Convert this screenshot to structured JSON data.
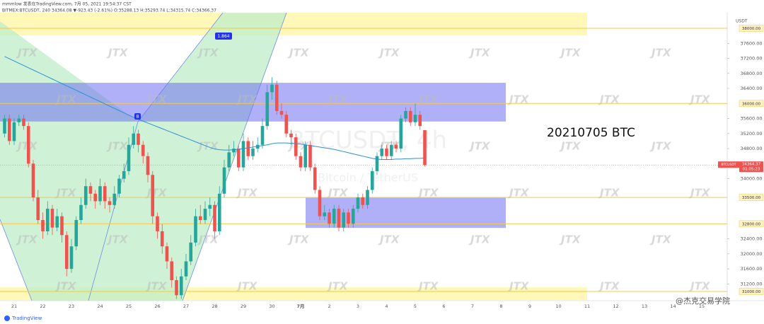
{
  "header": {
    "line1": "mmmlow 发表在TradingView.com, 7月 05, 2021 19:54:37 CST",
    "line2": "BITMEX:BTCUSDT, 240 34364.08 ▼-923.43 (-2.61%) O:35288.13 H:35293.74 L:34315.74 C:34366.37"
  },
  "chart_data": {
    "type": "candlestick",
    "up_color": "#26a69a",
    "down_color": "#ef5350",
    "categories": [
      null,
      null,
      "21",
      null,
      null,
      null,
      null,
      null,
      "22",
      null,
      null,
      null,
      null,
      null,
      "23",
      null,
      null,
      null,
      null,
      null,
      "24",
      null,
      null,
      null,
      null,
      null,
      "25",
      null,
      null,
      null,
      null,
      null,
      "26",
      null,
      null,
      null,
      null,
      null,
      "27",
      null,
      null,
      null,
      null,
      null,
      "28",
      null,
      null,
      null,
      null,
      null,
      "29",
      null,
      null,
      null,
      null,
      null,
      "30",
      null,
      null,
      null,
      null,
      null,
      "7月",
      null,
      null,
      null,
      null,
      null,
      "2",
      null,
      null,
      null,
      null,
      null,
      "3",
      null,
      null,
      null,
      null,
      null,
      "4",
      null,
      null,
      null,
      null,
      null,
      "5",
      null,
      null,
      null,
      null,
      null,
      "6",
      null,
      null,
      null,
      null,
      null,
      "7",
      null,
      null,
      null,
      null,
      null,
      "8",
      null,
      null,
      null,
      null,
      null,
      "9",
      null,
      null,
      null,
      null,
      null,
      "10",
      null,
      null,
      null,
      null,
      null,
      "11",
      null,
      null,
      null,
      null,
      null,
      "12",
      null,
      null,
      null,
      null,
      null,
      "13",
      null,
      null,
      null,
      null,
      null,
      "14",
      null,
      null,
      null,
      null,
      null,
      "15",
      null,
      null,
      null,
      null,
      null
    ],
    "ohlc": [
      [
        35200,
        35700,
        35100,
        35600
      ],
      [
        35600,
        35700,
        34900,
        35000
      ],
      [
        35000,
        35600,
        34900,
        35500
      ],
      [
        35500,
        35700,
        35400,
        35600
      ],
      [
        35600,
        35700,
        35300,
        35400
      ],
      [
        35400,
        35500,
        34300,
        34400
      ],
      [
        34400,
        34500,
        33400,
        33500
      ],
      [
        33500,
        33700,
        32800,
        32900
      ],
      [
        32900,
        33100,
        32400,
        32600
      ],
      [
        32600,
        33400,
        32500,
        33200
      ],
      [
        33200,
        33300,
        32500,
        32700
      ],
      [
        32700,
        33200,
        32600,
        33000
      ],
      [
        33000,
        33100,
        32300,
        32500
      ],
      [
        32500,
        32600,
        31400,
        31600
      ],
      [
        31600,
        32400,
        31500,
        32200
      ],
      [
        32200,
        33000,
        32100,
        32900
      ],
      [
        32900,
        33500,
        32800,
        33300
      ],
      [
        33300,
        34000,
        33200,
        33800
      ],
      [
        33800,
        33900,
        33400,
        33600
      ],
      [
        33600,
        33700,
        33200,
        33400
      ],
      [
        33400,
        34000,
        33300,
        33800
      ],
      [
        33800,
        33900,
        33200,
        33400
      ],
      [
        33400,
        33500,
        33100,
        33300
      ],
      [
        33300,
        33800,
        33200,
        33600
      ],
      [
        33600,
        34100,
        33500,
        34000
      ],
      [
        34000,
        34400,
        33900,
        34200
      ],
      [
        34200,
        35100,
        34100,
        34900
      ],
      [
        34900,
        35400,
        34800,
        35200
      ],
      [
        35200,
        35300,
        34700,
        34900
      ],
      [
        34900,
        35000,
        34400,
        34600
      ],
      [
        34600,
        34700,
        33900,
        34100
      ],
      [
        34100,
        34200,
        32800,
        33000
      ],
      [
        33000,
        33100,
        32400,
        32600
      ],
      [
        32600,
        32800,
        32000,
        32200
      ],
      [
        32200,
        32300,
        31600,
        31800
      ],
      [
        31800,
        31900,
        31100,
        31300
      ],
      [
        31300,
        31400,
        30800,
        30900
      ],
      [
        30900,
        31600,
        30800,
        31400
      ],
      [
        31400,
        32000,
        31300,
        31800
      ],
      [
        31800,
        32500,
        31700,
        32300
      ],
      [
        32300,
        33200,
        32200,
        33000
      ],
      [
        33000,
        33300,
        32800,
        32900
      ],
      [
        32900,
        33400,
        32800,
        33200
      ],
      [
        33200,
        33500,
        33000,
        33300
      ],
      [
        33300,
        33400,
        32400,
        32600
      ],
      [
        32600,
        33800,
        32500,
        33600
      ],
      [
        33600,
        34500,
        33500,
        34300
      ],
      [
        34300,
        34900,
        34200,
        34700
      ],
      [
        34700,
        35000,
        34600,
        34800
      ],
      [
        34800,
        34900,
        34200,
        34300
      ],
      [
        34300,
        35200,
        34200,
        35000
      ],
      [
        35000,
        35100,
        34500,
        34600
      ],
      [
        34600,
        35000,
        34500,
        34800
      ],
      [
        34800,
        35100,
        34700,
        34900
      ],
      [
        34900,
        35600,
        34800,
        35400
      ],
      [
        35400,
        36500,
        35300,
        36300
      ],
      [
        36300,
        36700,
        36100,
        36500
      ],
      [
        36500,
        36600,
        35700,
        35800
      ],
      [
        35800,
        36000,
        35600,
        35700
      ],
      [
        35700,
        35800,
        35100,
        35200
      ],
      [
        35200,
        35300,
        34900,
        35100
      ],
      [
        35100,
        35200,
        34500,
        34600
      ],
      [
        34600,
        34700,
        34200,
        34300
      ],
      [
        34300,
        35000,
        34200,
        34900
      ],
      [
        34900,
        35000,
        34200,
        34300
      ],
      [
        34300,
        34400,
        33600,
        33700
      ],
      [
        33700,
        33800,
        32900,
        33000
      ],
      [
        33000,
        33300,
        32900,
        33100
      ],
      [
        33100,
        33200,
        32700,
        32800
      ],
      [
        32800,
        33300,
        32700,
        33200
      ],
      [
        33200,
        33300,
        32600,
        32700
      ],
      [
        32700,
        33200,
        32600,
        33100
      ],
      [
        33100,
        33200,
        32700,
        32800
      ],
      [
        32800,
        33300,
        32700,
        33200
      ],
      [
        33200,
        33600,
        33100,
        33500
      ],
      [
        33500,
        33600,
        33200,
        33300
      ],
      [
        33300,
        33800,
        33200,
        33700
      ],
      [
        33700,
        34300,
        33600,
        34200
      ],
      [
        34200,
        34700,
        34100,
        34600
      ],
      [
        34600,
        34900,
        34500,
        34800
      ],
      [
        34800,
        34900,
        34500,
        34600
      ],
      [
        34600,
        35000,
        34500,
        34900
      ],
      [
        34900,
        35000,
        34700,
        34800
      ],
      [
        34800,
        35700,
        34700,
        35600
      ],
      [
        35600,
        35900,
        35500,
        35800
      ],
      [
        35800,
        35900,
        35400,
        35500
      ],
      [
        35500,
        36000,
        35400,
        35700
      ],
      [
        35700,
        35800,
        35300,
        35400
      ],
      [
        35290,
        35290,
        34320,
        34360
      ],
      null,
      null,
      null,
      null,
      null,
      null,
      null,
      null,
      null,
      null,
      null,
      null,
      null,
      null,
      null,
      null,
      null,
      null,
      null,
      null,
      null,
      null,
      null,
      null,
      null,
      null,
      null,
      null,
      null,
      null,
      null,
      null,
      null,
      null,
      null,
      null,
      null,
      null,
      null,
      null,
      null,
      null,
      null,
      null,
      null,
      null,
      null,
      null,
      null,
      null,
      null,
      null,
      null,
      null,
      null,
      null,
      null,
      null,
      null,
      null,
      null,
      null,
      null
    ],
    "ma": {
      "color": "#2f8fd8",
      "values": [
        37250,
        37190,
        37130,
        37070,
        37010,
        36950,
        36890,
        36830,
        36770,
        36710,
        36650,
        36590,
        36530,
        36470,
        36410,
        36350,
        36290,
        36230,
        36170,
        36110,
        36050,
        35990,
        35930,
        35870,
        35810,
        35750,
        35690,
        35630,
        35580,
        35530,
        35480,
        35430,
        35380,
        35330,
        35280,
        35230,
        35180,
        35130,
        35080,
        35030,
        34980,
        34930,
        34880,
        34830,
        34790,
        34770,
        34760,
        34760,
        34770,
        34780,
        34800,
        34820,
        34840,
        34860,
        34880,
        34900,
        34930,
        34950,
        34950,
        34950,
        34940,
        34930,
        34920,
        34900,
        34880,
        34860,
        34840,
        34820,
        34800,
        34780,
        34750,
        34720,
        34690,
        34660,
        34630,
        34600,
        34570,
        34540,
        34520,
        34510,
        34510,
        34510,
        34520,
        34520,
        34530,
        34530,
        34540,
        34540,
        34550,
        null,
        null,
        null,
        null,
        null,
        null,
        null,
        null,
        null,
        null,
        null,
        null,
        null,
        null,
        null,
        null,
        null,
        null,
        null,
        null,
        null,
        null,
        null,
        null,
        null,
        null,
        null,
        null,
        null,
        null,
        null,
        null,
        null,
        null,
        null,
        null,
        null,
        null,
        null,
        null,
        null,
        null,
        null,
        null,
        null,
        null,
        null,
        null,
        null,
        null,
        null,
        null,
        null,
        null,
        null,
        null,
        null,
        null,
        null,
        null,
        null,
        null,
        null
      ]
    },
    "ylim": [
      30755,
      38414
    ],
    "yticks": [
      {
        "value": 37600,
        "label": "37600.00"
      },
      {
        "value": 37200,
        "label": "37200.00"
      },
      {
        "value": 36800,
        "label": "36800.00"
      },
      {
        "value": 36400,
        "label": "36400.00"
      },
      {
        "value": 35600,
        "label": "35600.00"
      },
      {
        "value": 35200,
        "label": "35200.00"
      },
      {
        "value": 34800,
        "label": "34800.00"
      },
      {
        "value": 34000,
        "label": "34000.00"
      },
      {
        "value": 32400,
        "label": "32400.00"
      },
      {
        "value": 32000,
        "label": "32000.00"
      },
      {
        "value": 31600,
        "label": "31600.00"
      },
      {
        "value": 31200,
        "label": "31200.00"
      }
    ],
    "levels": [
      {
        "value": 38000,
        "label": "38000.00"
      },
      {
        "value": 36000,
        "label": "36000.00"
      },
      {
        "value": 33500,
        "label": "33500.00"
      },
      {
        "value": 32800,
        "label": "32800.00"
      },
      {
        "value": 31000,
        "label": "31000.00"
      }
    ],
    "level_color": "#f2c94c",
    "zones": [
      {
        "from": 37810,
        "to": 38414,
        "color": "#fff7b0"
      },
      {
        "from": 30770,
        "to": 31110,
        "color": "#fff7b0"
      },
      {
        "from": 35520,
        "to": 36550,
        "color": "#6f6ff2"
      },
      {
        "from": 32690,
        "to": 33500,
        "color": "#6f6ff2"
      }
    ],
    "last_price": {
      "name": "BTCUSDT",
      "value": 34364.37,
      "label": "34364.37",
      "timer": "01:05:23",
      "color": "#ef5350"
    },
    "axis_unit": "USDT",
    "annotation": "20210705 BTC",
    "pattern_label": "1.864",
    "point_label": "B",
    "watermark": [
      "BTCUSDT, 4h",
      "Bitcoin / TetherUS"
    ],
    "brand": "JTX"
  },
  "footer": {
    "logo": "TradingView",
    "credit": "@杰克交易学院"
  }
}
